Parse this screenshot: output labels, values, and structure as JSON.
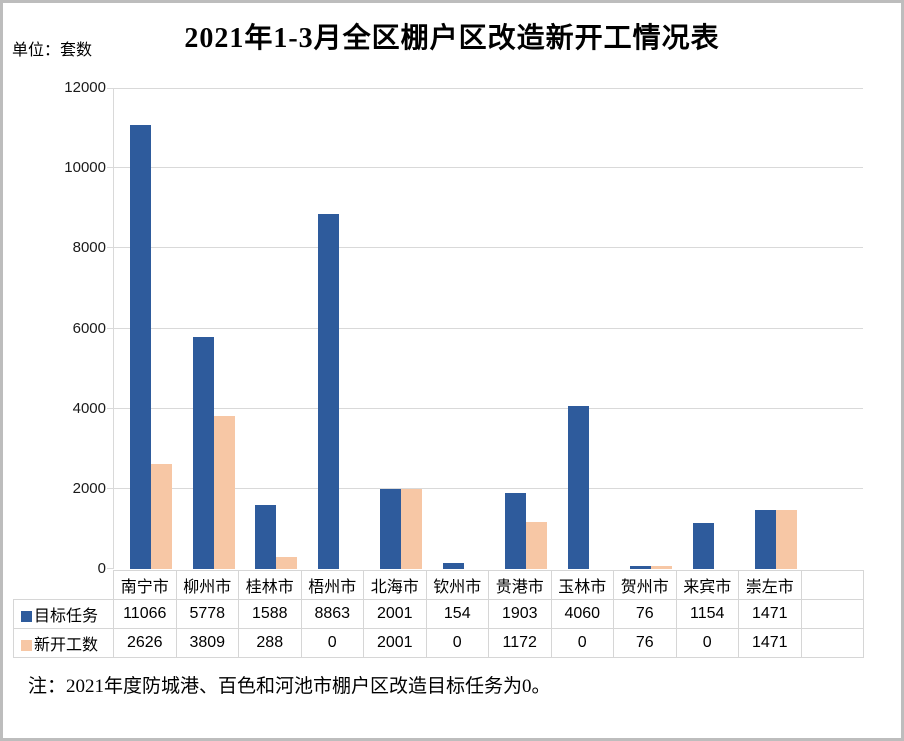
{
  "title": "2021年1-3月全区棚户区改造新开工情况表",
  "unit_label": "单位：套数",
  "note": "注：2021年度防城港、百色和河池市棚户区改造目标任务为0。",
  "colors": {
    "series_target": "#2e5b9c",
    "series_started": "#f7c7a5",
    "gridline": "#d9d9d9",
    "table_border": "#d6d6d6"
  },
  "chart_data": {
    "type": "bar",
    "title": "2021年1-3月全区棚户区改造新开工情况表",
    "ylabel": "套数",
    "categories": [
      "南宁市",
      "柳州市",
      "桂林市",
      "梧州市",
      "北海市",
      "钦州市",
      "贵港市",
      "玉林市",
      "贺州市",
      "来宾市",
      "崇左市"
    ],
    "series": [
      {
        "name": "目标任务",
        "color": "#2e5b9c",
        "values": [
          11066,
          5778,
          1588,
          8863,
          2001,
          154,
          1903,
          4060,
          76,
          1154,
          1471
        ]
      },
      {
        "name": "新开工数",
        "color": "#f7c7a5",
        "values": [
          2626,
          3809,
          288,
          0,
          2001,
          0,
          1172,
          0,
          76,
          0,
          1471
        ]
      }
    ],
    "ylim": [
      0,
      12000
    ],
    "yticks": [
      0,
      2000,
      4000,
      6000,
      8000,
      10000,
      12000
    ],
    "grid": true,
    "legend_position": "table-left",
    "extra_empty_category_column": 1
  }
}
